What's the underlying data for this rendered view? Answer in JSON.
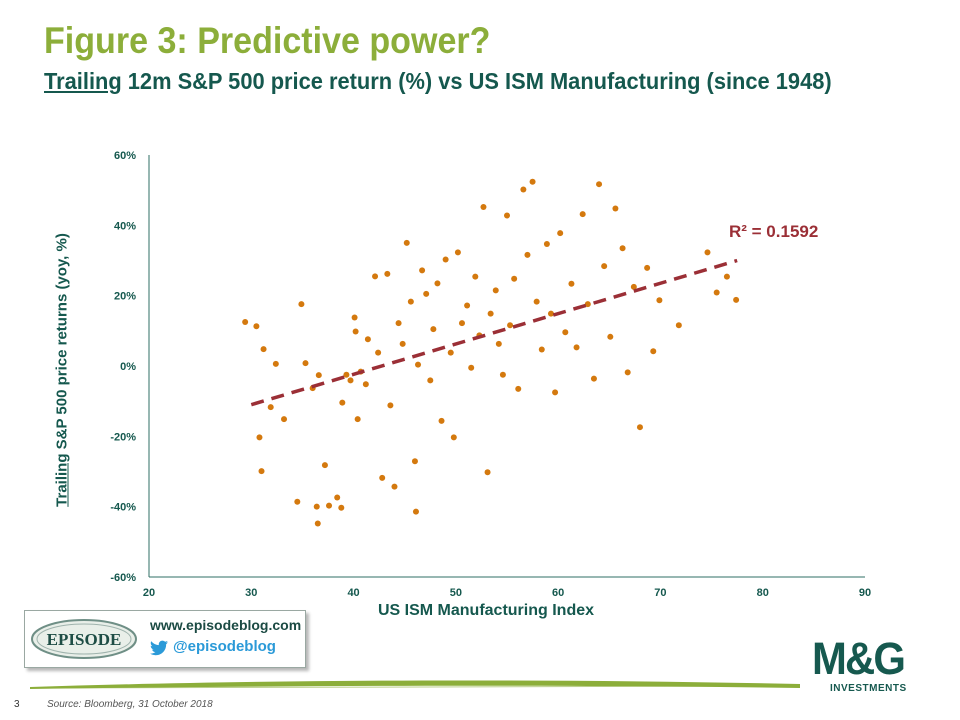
{
  "header": {
    "title": "Figure 3: Predictive power?",
    "subtitle_underlined": "Trailing",
    "subtitle_rest": " 12m S&P 500 price return (%) vs US ISM Manufacturing (since 1948)"
  },
  "chart_data": {
    "type": "scatter",
    "title": "",
    "xlabel": "US ISM Manufacturing Index",
    "ylabel_underlined": "Trailing",
    "ylabel_rest": " S&P 500 price returns (yoy, %)",
    "xlim": [
      20,
      90
    ],
    "ylim": [
      -60,
      60
    ],
    "x_ticks": [
      "20",
      "30",
      "40",
      "50",
      "60",
      "70",
      "80",
      "90"
    ],
    "y_ticks": [
      "60%",
      "40%",
      "20%",
      "0%",
      "-20%",
      "-40%",
      "-60%"
    ],
    "point_color": "#d4790e",
    "trendline_color": "#9b2f36",
    "trendline": {
      "x": [
        30,
        77.5
      ],
      "y": [
        -11,
        30
      ]
    },
    "r_squared_label": "R² = 0.1592",
    "grid": false,
    "series": [
      {
        "points": [
          [
            29.4,
            12.5
          ],
          [
            30.5,
            11.3
          ],
          [
            31.2,
            4.8
          ],
          [
            30.8,
            -20.3
          ],
          [
            31,
            -29.9
          ],
          [
            31.9,
            -11.7
          ],
          [
            32.4,
            0.6
          ],
          [
            33.2,
            -15.1
          ],
          [
            34.5,
            -38.6
          ],
          [
            34.9,
            17.6
          ],
          [
            35.3,
            0.8
          ],
          [
            36,
            -6.3
          ],
          [
            36.4,
            -40
          ],
          [
            36.5,
            -44.8
          ],
          [
            36.6,
            -2.6
          ],
          [
            37.2,
            -28.2
          ],
          [
            37.6,
            -39.7
          ],
          [
            38.4,
            -37.4
          ],
          [
            38.8,
            -40.3
          ],
          [
            38.9,
            -10.4
          ],
          [
            39.3,
            -2.5
          ],
          [
            39.7,
            -4.1
          ],
          [
            40.1,
            13.8
          ],
          [
            40.2,
            9.8
          ],
          [
            40.4,
            -15.1
          ],
          [
            40.7,
            -1.6
          ],
          [
            41.2,
            -5.2
          ],
          [
            41.4,
            7.6
          ],
          [
            42.1,
            25.5
          ],
          [
            42.4,
            3.8
          ],
          [
            42.8,
            -31.8
          ],
          [
            43.3,
            26.2
          ],
          [
            43.6,
            -11.2
          ],
          [
            44,
            -34.3
          ],
          [
            44.4,
            12.2
          ],
          [
            44.8,
            6.3
          ],
          [
            45.2,
            35
          ],
          [
            45.6,
            18.3
          ],
          [
            46,
            -27.1
          ],
          [
            46.1,
            -41.4
          ],
          [
            46.3,
            0.4
          ],
          [
            46.7,
            27.2
          ],
          [
            47.1,
            20.5
          ],
          [
            47.5,
            -4.1
          ],
          [
            47.8,
            10.5
          ],
          [
            48.2,
            23.5
          ],
          [
            48.6,
            -15.6
          ],
          [
            49,
            30.3
          ],
          [
            49.5,
            3.8
          ],
          [
            49.8,
            -20.3
          ],
          [
            50.2,
            32.3
          ],
          [
            50.6,
            12.2
          ],
          [
            51.1,
            17.2
          ],
          [
            51.5,
            -0.5
          ],
          [
            51.9,
            25.4
          ],
          [
            52.3,
            8.7
          ],
          [
            52.7,
            45.2
          ],
          [
            53.1,
            -30.2
          ],
          [
            53.4,
            14.9
          ],
          [
            53.9,
            21.5
          ],
          [
            54.2,
            6.3
          ],
          [
            54.6,
            -2.5
          ],
          [
            55,
            42.8
          ],
          [
            55.3,
            11.6
          ],
          [
            55.7,
            24.8
          ],
          [
            56.1,
            -6.5
          ],
          [
            56.6,
            50.2
          ],
          [
            57,
            31.6
          ],
          [
            57.5,
            52.4
          ],
          [
            57.9,
            18.3
          ],
          [
            58.4,
            4.7
          ],
          [
            58.9,
            34.7
          ],
          [
            59.3,
            14.9
          ],
          [
            59.7,
            -7.5
          ],
          [
            60.2,
            37.8
          ],
          [
            60.7,
            9.6
          ],
          [
            61.3,
            23.4
          ],
          [
            61.8,
            5.3
          ],
          [
            62.4,
            43.2
          ],
          [
            62.9,
            17.6
          ],
          [
            63.5,
            -3.6
          ],
          [
            64,
            51.7
          ],
          [
            64.5,
            28.4
          ],
          [
            65.1,
            8.3
          ],
          [
            65.6,
            44.8
          ],
          [
            66.3,
            33.5
          ],
          [
            66.8,
            -1.8
          ],
          [
            67.4,
            22.5
          ],
          [
            68,
            -17.4
          ],
          [
            68.7,
            27.9
          ],
          [
            69.3,
            4.2
          ],
          [
            69.9,
            18.7
          ],
          [
            71.8,
            11.6
          ],
          [
            74.6,
            32.3
          ],
          [
            75.5,
            20.9
          ],
          [
            76.5,
            25.4
          ],
          [
            77.4,
            18.8
          ]
        ]
      }
    ]
  },
  "watermark": {
    "logo_text": "EPISODE",
    "url": "www.episodeblog.com",
    "twitter": "@episodeblog"
  },
  "footer": {
    "page_number": "3",
    "source": "Source: Bloomberg, 31 October 2018",
    "brand_name": "M&G",
    "brand_sub": "INVESTMENTS",
    "accent_color": "#8cae3a",
    "brand_color": "#16594f"
  }
}
